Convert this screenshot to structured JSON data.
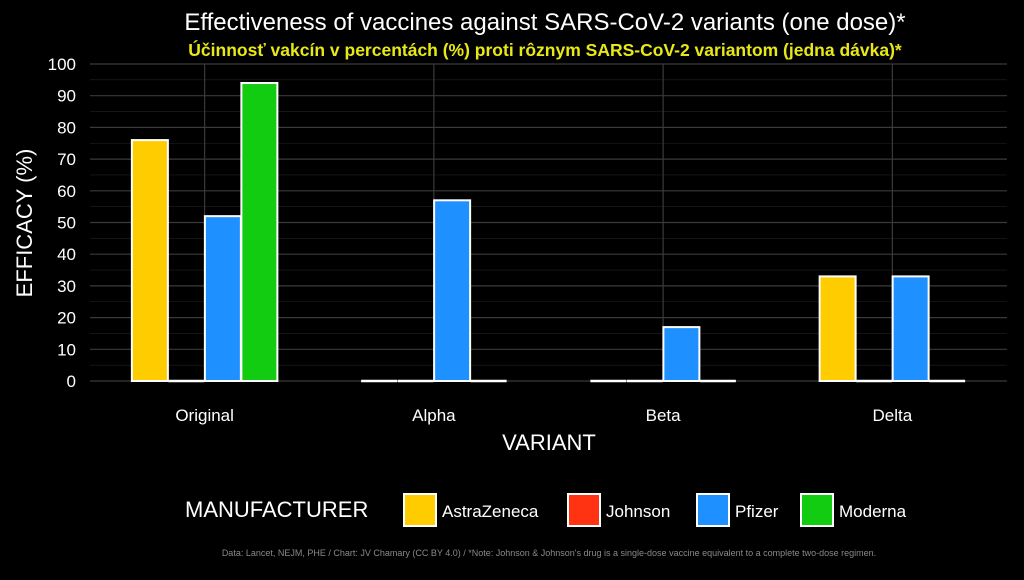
{
  "chart_data": {
    "type": "bar",
    "title": "Effectiveness of vaccines against SARS-CoV-2 variants (one dose)*",
    "subtitle": "Účinnosť vakcín v percentách (%) proti rôznym SARS-CoV-2 variantom (jedna dávka)*",
    "xlabel": "VARIANT",
    "ylabel": "EFFICACY (%)",
    "ylim": [
      0,
      100
    ],
    "yticks": [
      0,
      10,
      20,
      30,
      40,
      50,
      60,
      70,
      80,
      90,
      100
    ],
    "grid": true,
    "categories": [
      "Original",
      "Alpha",
      "Beta",
      "Delta"
    ],
    "series": [
      {
        "name": "AstraZeneca",
        "color": "#FFCC00",
        "values": [
          76,
          0,
          0,
          33
        ]
      },
      {
        "name": "Johnson",
        "color": "#FF3311",
        "values": [
          0,
          0,
          0,
          0
        ]
      },
      {
        "name": "Pfizer",
        "color": "#1E90FF",
        "values": [
          52,
          57,
          17,
          33
        ]
      },
      {
        "name": "Moderna",
        "color": "#11CC11",
        "values": [
          94,
          0,
          0,
          0
        ]
      }
    ],
    "legend_title": "MANUFACTURER",
    "legend_position": "bottom",
    "footnote": "Data: Lancet, NEJM, PHE / Chart: JV Chamary (CC BY 4.0) / *Note: Johnson & Johnson's drug is a single-dose vaccine equivalent to a complete two-dose regimen."
  },
  "colors": {
    "background": "#000000",
    "title": "#FFFFFF",
    "subtitle": "#E8E817",
    "grid": "#3A3A3A",
    "footnote": "#8A8A8A"
  }
}
